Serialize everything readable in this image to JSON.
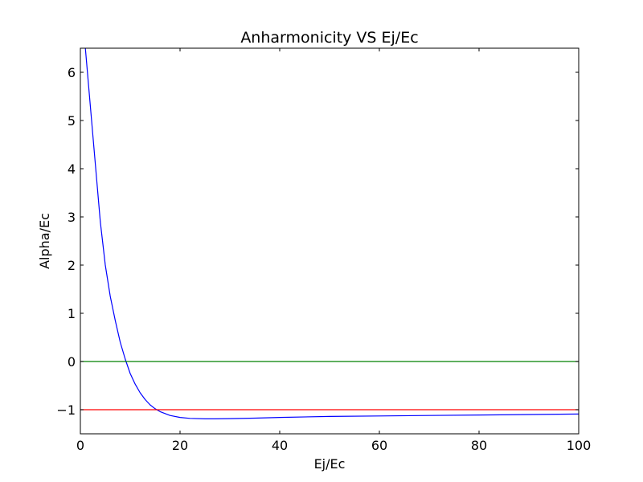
{
  "chart_data": {
    "type": "line",
    "title": "Anharmonicity VS Ej/Ec",
    "xlabel": "Ej/Ec",
    "ylabel": "Alpha/Ec",
    "xlim": [
      0,
      100
    ],
    "ylim": [
      -1.5,
      6.5
    ],
    "xticks": [
      0,
      20,
      40,
      60,
      80,
      100
    ],
    "yticks": [
      -1,
      0,
      1,
      2,
      3,
      4,
      5,
      6
    ],
    "xtick_labels": [
      "0",
      "20",
      "40",
      "60",
      "80",
      "100"
    ],
    "ytick_labels": [
      "−1",
      "0",
      "1",
      "2",
      "3",
      "4",
      "5",
      "6"
    ],
    "grid": false,
    "legend": "none",
    "series": [
      {
        "color": "#0000ff",
        "x": [
          1,
          2,
          3,
          4,
          5,
          6,
          7,
          8,
          9,
          10,
          11,
          12,
          13,
          14,
          15,
          16,
          18,
          20,
          22,
          25,
          27,
          30,
          35,
          40,
          50,
          60,
          70,
          80,
          90,
          100
        ],
        "y": [
          6.5,
          5.3,
          4.1,
          2.9,
          2.0,
          1.35,
          0.85,
          0.4,
          0.05,
          -0.25,
          -0.47,
          -0.65,
          -0.79,
          -0.9,
          -0.98,
          -1.04,
          -1.12,
          -1.16,
          -1.18,
          -1.19,
          -1.19,
          -1.185,
          -1.175,
          -1.16,
          -1.14,
          -1.13,
          -1.12,
          -1.11,
          -1.1,
          -1.09
        ]
      },
      {
        "color": "#008000",
        "x": [
          0,
          100
        ],
        "y": [
          0,
          0
        ]
      },
      {
        "color": "#ff0000",
        "x": [
          0,
          100
        ],
        "y": [
          -1,
          -1
        ]
      }
    ]
  }
}
